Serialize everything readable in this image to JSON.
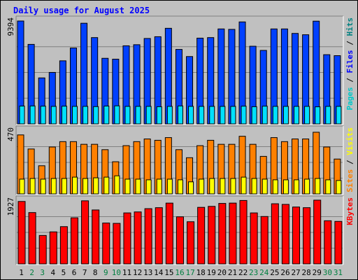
{
  "chart_data": {
    "type": "bar",
    "title": "Daily usage for August 2025",
    "categories": [
      "1",
      "2",
      "3",
      "4",
      "5",
      "6",
      "7",
      "8",
      "9",
      "10",
      "11",
      "12",
      "13",
      "14",
      "15",
      "16",
      "17",
      "18",
      "19",
      "20",
      "21",
      "22",
      "23",
      "24",
      "25",
      "26",
      "27",
      "28",
      "29",
      "30",
      "31"
    ],
    "weekend_days": [
      "2",
      "3",
      "9",
      "10",
      "16",
      "17",
      "23",
      "24",
      "30",
      "31"
    ],
    "panels": [
      {
        "id": "hits",
        "ymax_label": "9394",
        "ylim": [
          0,
          9394
        ],
        "side_label": [
          {
            "text": "Pages",
            "color": "#00c8c8"
          },
          {
            "text": " / ",
            "color": "#000000"
          },
          {
            "text": "Files",
            "color": "#0000ff"
          },
          {
            "text": " / ",
            "color": "#000000"
          },
          {
            "text": "Hits",
            "color": "#008080"
          }
        ],
        "series": [
          {
            "name": "Hits",
            "color": "#0040ff",
            "values": [
              9394,
              7260,
              4200,
              4700,
              5760,
              6930,
              9190,
              7880,
              5990,
              5910,
              7130,
              7230,
              7800,
              7960,
              8730,
              6800,
              6150,
              7830,
              7880,
              8670,
              8630,
              9310,
              7090,
              6710,
              8670,
              8670,
              8260,
              8140,
              9380,
              6320,
              6230
            ]
          },
          {
            "name": "Files",
            "color": "#00e0ff",
            "values": [
              1630,
              1640,
              1620,
              1600,
              1620,
              1600,
              1600,
              1580,
              1630,
              1650,
              1600,
              1600,
              1600,
              1570,
              1600,
              1640,
              1600,
              1600,
              1600,
              1600,
              1600,
              1620,
              1570,
              1620,
              1600,
              1600,
              1600,
              1600,
              1560,
              1600,
              1600
            ]
          }
        ]
      },
      {
        "id": "visits",
        "ymax_label": "470",
        "ylim": [
          0,
          470
        ],
        "side_label": [
          {
            "text": "Sites",
            "color": "#ff8000"
          },
          {
            "text": " / ",
            "color": "#000000"
          },
          {
            "text": "Visits",
            "color": "#ffff00"
          }
        ],
        "series": [
          {
            "name": "Visits",
            "color": "#ff8000",
            "values": [
              440,
              335,
              210,
              350,
              390,
              390,
              370,
              370,
              330,
              240,
              360,
              390,
              410,
              400,
              420,
              330,
              270,
              360,
              400,
              370,
              370,
              430,
              370,
              280,
              420,
              390,
              410,
              410,
              460,
              350,
              260
            ]
          },
          {
            "name": "Sites",
            "color": "#ffff00",
            "values": [
              110,
              115,
              110,
              115,
              115,
              125,
              115,
              120,
              125,
              135,
              110,
              110,
              105,
              110,
              110,
              105,
              90,
              110,
              115,
              115,
              115,
              125,
              115,
              110,
              105,
              105,
              105,
              110,
              115,
              105,
              100
            ]
          }
        ]
      },
      {
        "id": "kbytes",
        "ymax_label": "1927",
        "ylim": [
          0,
          1927
        ],
        "side_label": [
          {
            "text": "KBytes",
            "color": "#ff0000"
          }
        ],
        "series": [
          {
            "name": "KBytes",
            "color": "#ff0000",
            "values": [
              1910,
              1570,
              870,
              980,
              1140,
              1410,
              1930,
              1650,
              1250,
              1240,
              1560,
              1590,
              1690,
              1720,
              1860,
              1440,
              1290,
              1730,
              1760,
              1850,
              1860,
              1940,
              1560,
              1450,
              1840,
              1820,
              1740,
              1720,
              1950,
              1320,
              1300
            ]
          }
        ]
      }
    ]
  }
}
